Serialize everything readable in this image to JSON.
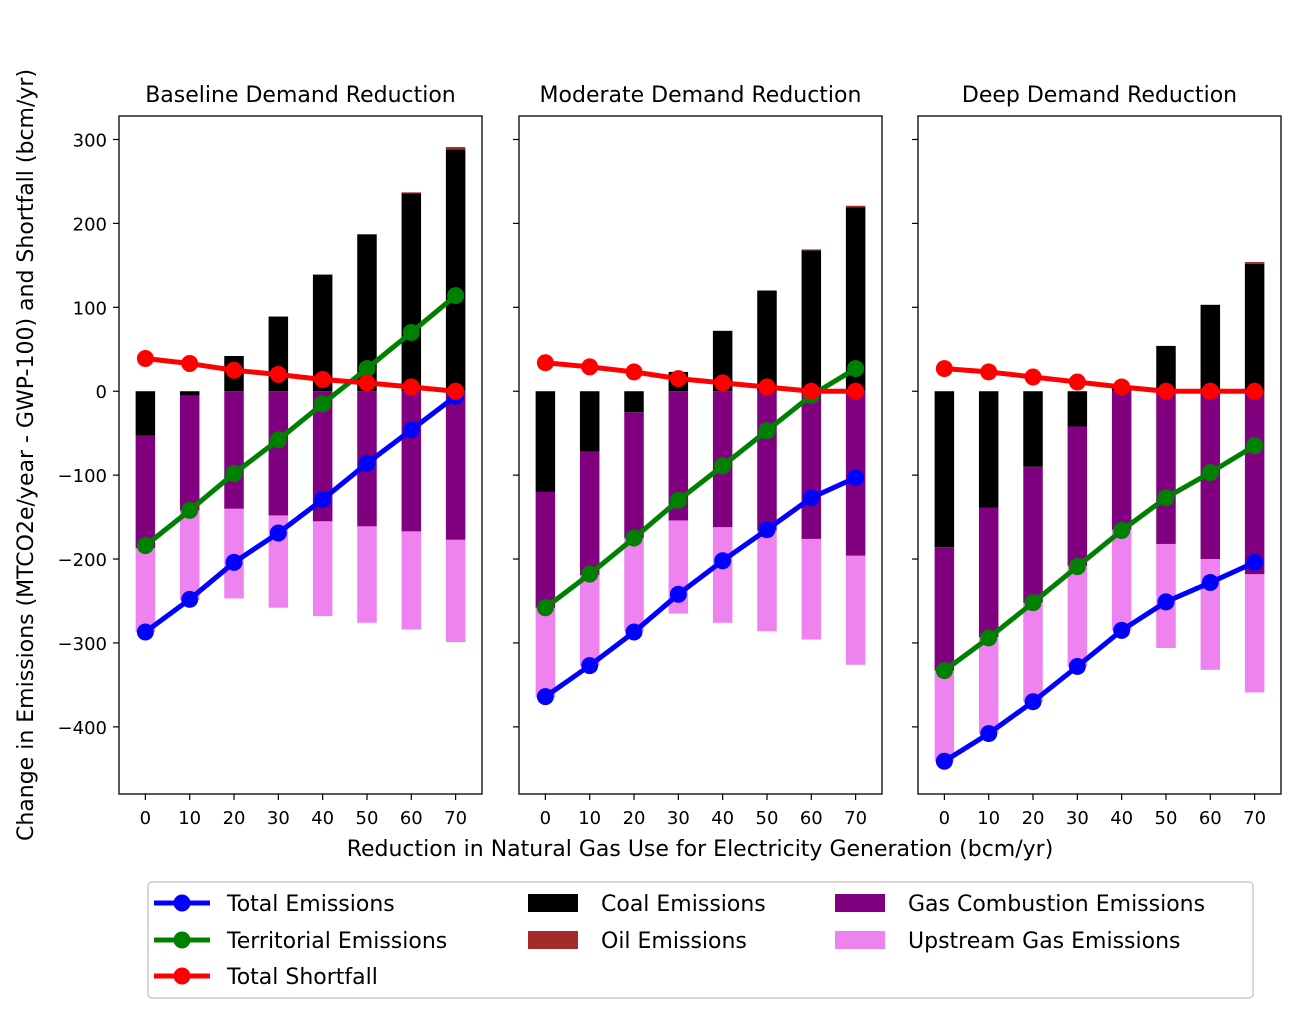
{
  "figure": {
    "ylabel": "Change in Emissions (MTCO2e/year - GWP-100) and Shortfall (bcm/yr)",
    "xlabel": "Reduction in Natural Gas Use for Electricity Generation (bcm/yr)"
  },
  "colors": {
    "total": "#0000ff",
    "territorial": "#008000",
    "shortfall": "#ff0000",
    "coal": "#000000",
    "oil": "#a52a2a",
    "gas_combustion": "#800080",
    "upstream_gas": "#ee82ee"
  },
  "legend": [
    {
      "key": "total",
      "label": "Total Emissions",
      "kind": "line"
    },
    {
      "key": "territorial",
      "label": "Territorial Emissions",
      "kind": "line"
    },
    {
      "key": "shortfall",
      "label": "Total Shortfall",
      "kind": "line"
    },
    {
      "key": "coal",
      "label": "Coal Emissions",
      "kind": "bar"
    },
    {
      "key": "oil",
      "label": "Oil Emissions",
      "kind": "bar"
    },
    {
      "key": "gas_combustion",
      "label": "Gas Combustion Emissions",
      "kind": "bar"
    },
    {
      "key": "upstream_gas",
      "label": "Upstream Gas Emissions",
      "kind": "bar"
    }
  ],
  "chart_data": [
    {
      "type": "bar",
      "title": "Baseline Demand Reduction",
      "x": [
        0,
        10,
        20,
        30,
        40,
        50,
        60,
        70
      ],
      "ylim": [
        -480,
        328
      ],
      "yticks": [
        300,
        200,
        100,
        0,
        -100,
        -200,
        -300,
        -400
      ],
      "bars": {
        "coal": [
          -53,
          -5,
          42,
          89,
          139,
          187,
          236,
          288
        ],
        "oil": [
          0,
          0,
          0,
          0,
          0,
          0,
          1,
          3
        ],
        "gas_combustion": [
          -134,
          -137,
          -140,
          -148,
          -155,
          -161,
          -167,
          -177
        ],
        "upstream_gas": [
          -100,
          -107,
          -107,
          -110,
          -113,
          -115,
          -117,
          -122
        ]
      },
      "lines": {
        "total": [
          -287,
          -248,
          -204,
          -169,
          -129,
          -86,
          -46,
          -6
        ],
        "territorial": [
          -184,
          -142,
          -98,
          -58,
          -15,
          27,
          70,
          114
        ],
        "shortfall": [
          39,
          33,
          25,
          20,
          14,
          10,
          5,
          0
        ]
      }
    },
    {
      "type": "bar",
      "title": "Moderate Demand Reduction",
      "x": [
        0,
        10,
        20,
        30,
        40,
        50,
        60,
        70
      ],
      "ylim": [
        -480,
        328
      ],
      "yticks": [
        300,
        200,
        100,
        0,
        -100,
        -200,
        -300,
        -400
      ],
      "bars": {
        "coal": [
          -120,
          -72,
          -25,
          23,
          72,
          120,
          168,
          219
        ],
        "oil": [
          0,
          0,
          0,
          0,
          0,
          0,
          1,
          2
        ],
        "gas_combustion": [
          -138,
          -147,
          -150,
          -154,
          -162,
          -166,
          -176,
          -196
        ],
        "upstream_gas": [
          -107,
          -108,
          -111,
          -111,
          -114,
          -120,
          -120,
          -130
        ]
      },
      "lines": {
        "total": [
          -364,
          -327,
          -287,
          -242,
          -202,
          -165,
          -127,
          -103
        ],
        "territorial": [
          -258,
          -218,
          -175,
          -130,
          -89,
          -47,
          -5,
          27
        ],
        "shortfall": [
          34,
          29,
          23,
          15,
          10,
          5,
          0,
          0
        ]
      }
    },
    {
      "type": "bar",
      "title": "Deep Demand Reduction",
      "x": [
        0,
        10,
        20,
        30,
        40,
        50,
        60,
        70
      ],
      "ylim": [
        -480,
        328
      ],
      "yticks": [
        300,
        200,
        100,
        0,
        -100,
        -200,
        -300,
        -400
      ],
      "bars": {
        "coal": [
          -186,
          -139,
          -90,
          -42,
          6,
          54,
          103,
          152
        ],
        "oil": [
          0,
          0,
          0,
          0,
          0,
          0,
          0,
          2
        ],
        "gas_combustion": [
          -147,
          -154,
          -162,
          -166,
          -165,
          -182,
          -200,
          -218
        ],
        "upstream_gas": [
          -108,
          -115,
          -118,
          -120,
          -120,
          -124,
          -132,
          -141
        ]
      },
      "lines": {
        "total": [
          -441,
          -408,
          -370,
          -328,
          -285,
          -251,
          -228,
          -204
        ],
        "territorial": [
          -333,
          -294,
          -252,
          -209,
          -166,
          -127,
          -97,
          -65
        ],
        "shortfall": [
          27,
          23,
          17,
          11,
          5,
          0,
          0,
          0
        ]
      }
    }
  ]
}
